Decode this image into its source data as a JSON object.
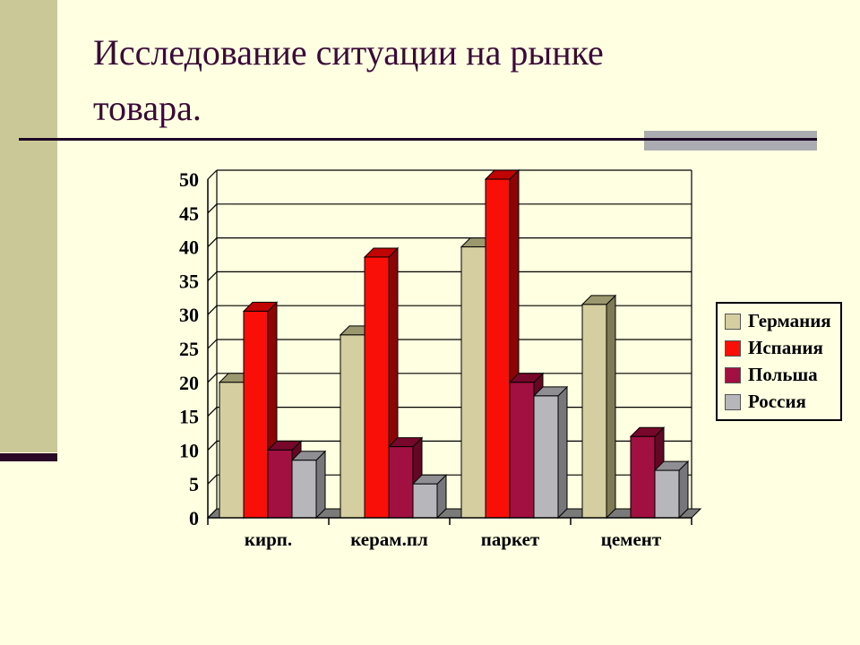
{
  "slide": {
    "title_line1": "Исследование ситуации на рынке",
    "title_line2": "товара."
  },
  "chart_data": {
    "type": "bar",
    "style": "3d-column",
    "title": "",
    "xlabel": "",
    "ylabel": "",
    "categories": [
      "кирп.",
      "керам.пл",
      "паркет",
      "цемент"
    ],
    "series": [
      {
        "name": "Германия",
        "values": [
          20,
          27,
          40,
          31.5
        ],
        "color": "#D5CEA0",
        "color_top": "#9B9870",
        "color_side": "#7E7B54"
      },
      {
        "name": "Испания",
        "values": [
          30.5,
          38.5,
          50,
          0
        ],
        "color": "#FA0F08",
        "color_top": "#C00404",
        "color_side": "#8E0404"
      },
      {
        "name": "Польша",
        "values": [
          10,
          10.5,
          20,
          12
        ],
        "color": "#A11040",
        "color_top": "#77082C",
        "color_side": "#630724"
      },
      {
        "name": "Россия",
        "values": [
          8.5,
          5,
          18,
          7
        ],
        "color": "#B6B6BB",
        "color_top": "#8E8E93",
        "color_side": "#76767B"
      }
    ],
    "ylim": [
      0,
      50
    ],
    "ytick_step": 5,
    "grid": true,
    "legend_position": "right"
  },
  "colors": {
    "background": "#FFFFE1",
    "strip": "#CAC897",
    "title_color": "#3A0A38",
    "separator": "#1C0726",
    "accent_gray": "#ABABB2",
    "legend_border": "#000000",
    "floor": "#7A7A7A",
    "grid": "#000000",
    "axis": "#000000"
  }
}
